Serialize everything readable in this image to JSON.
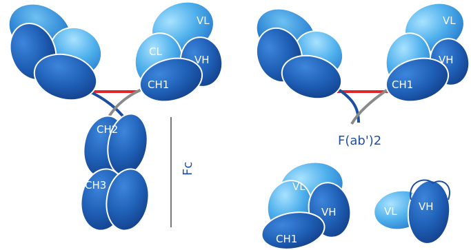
{
  "labels": {
    "vl": "VL",
    "vh": "VH",
    "cl": "CL",
    "ch1": "CH1",
    "ch2": "CH2",
    "ch3": "CH3",
    "fc": "Fc",
    "fab2": "F(ab')2"
  },
  "colors": {
    "light_blue": "#58b8ee",
    "mid_blue": "#2f86d6",
    "dark_blue": "#1a4fa2",
    "hinge_red": "#e0262b",
    "hinge_gray": "#8a8a8a",
    "fc_line": "#7a7a7a"
  }
}
